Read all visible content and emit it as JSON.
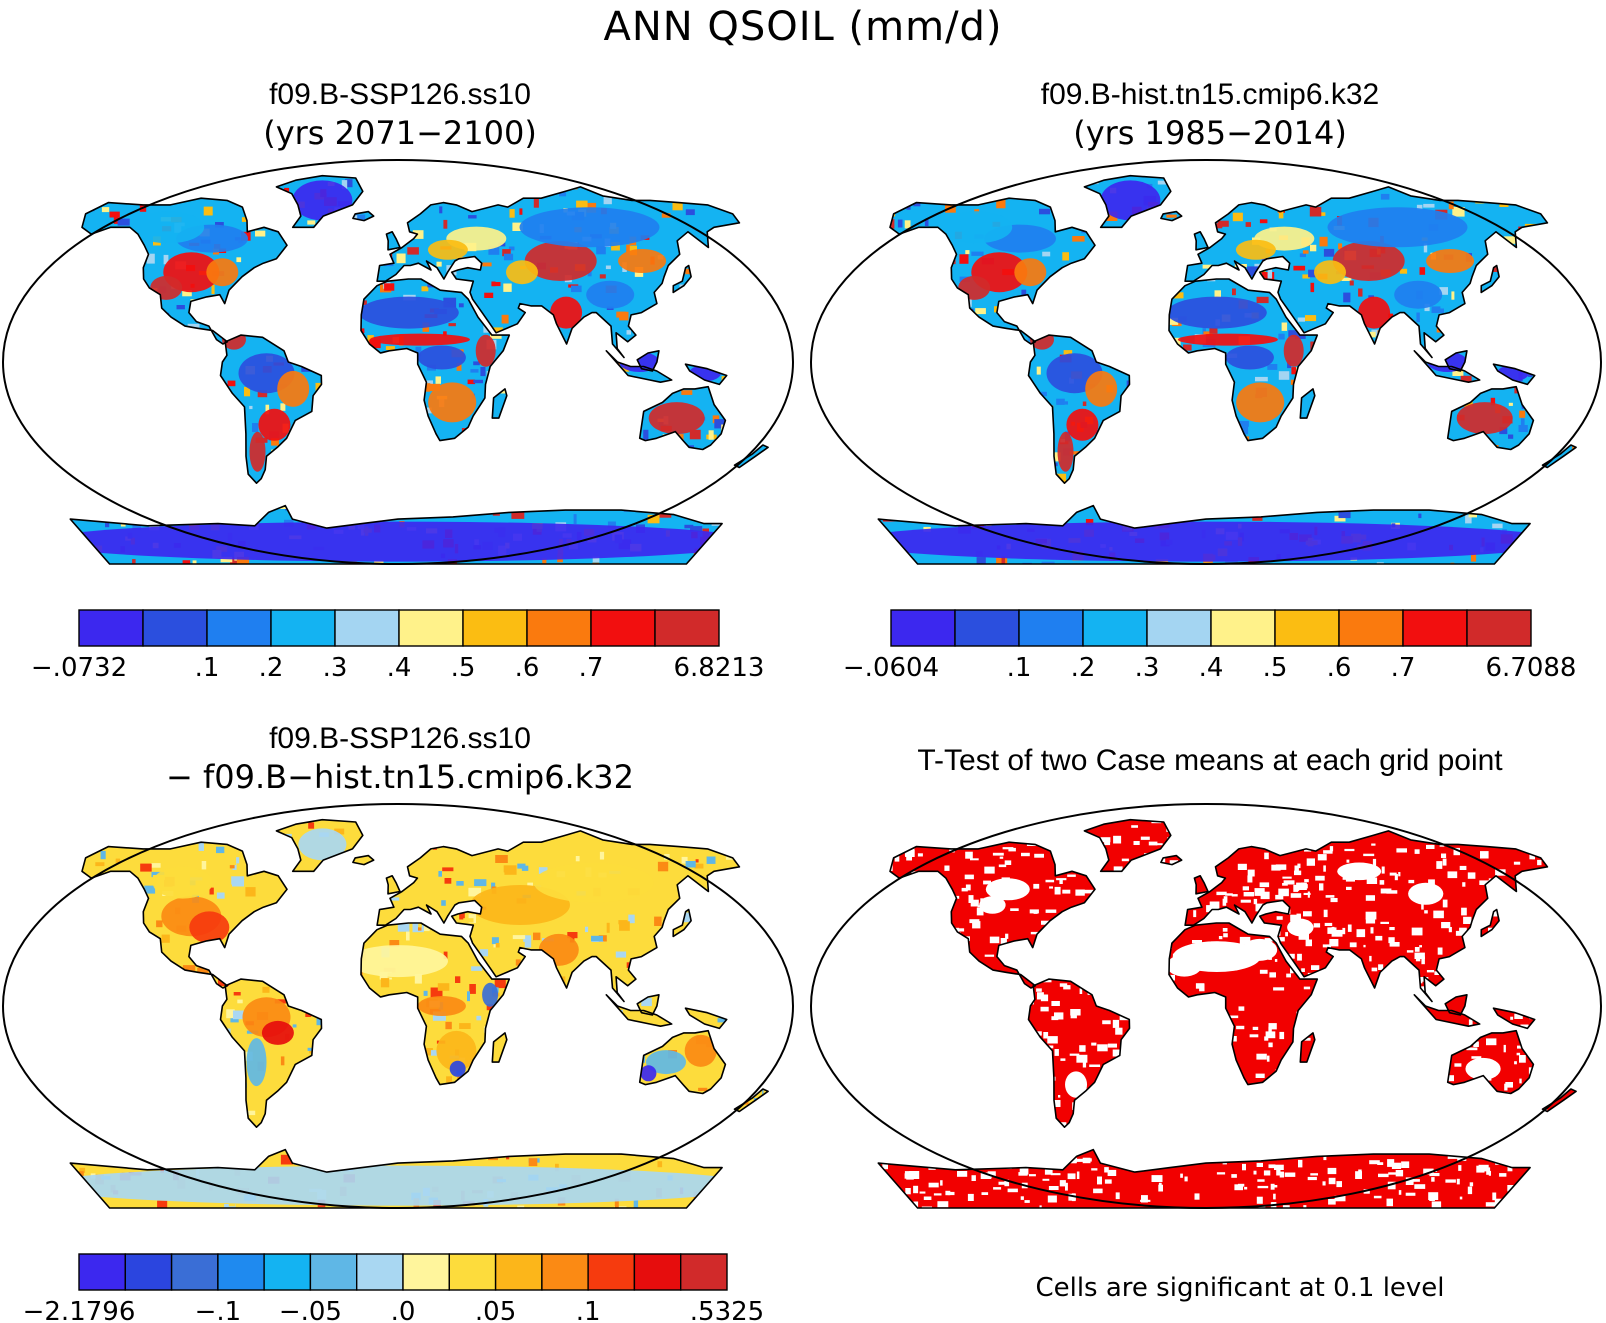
{
  "title": "ANN QSOIL (mm/d)",
  "panels": [
    {
      "id": "top-left",
      "case": "f09.B-SSP126.ss10",
      "subtitle": "(yrs 2071−2100)",
      "mode": "field",
      "land_palette": "historic",
      "colorbar": {
        "colors": [
          "#3c28ef",
          "#2b4fde",
          "#1f7ff0",
          "#14b3f2",
          "#a4d5f2",
          "#fff28a",
          "#fbbd12",
          "#fa7a0e",
          "#f20f0f",
          "#d12a2a"
        ],
        "labels": [
          "−.0732",
          ".1",
          ".2",
          ".3",
          ".4",
          ".5",
          ".6",
          ".7",
          "6.8213"
        ],
        "label_slots": [
          0,
          2,
          3,
          4,
          5,
          6,
          7,
          8,
          10
        ]
      }
    },
    {
      "id": "top-right",
      "case": "f09.B-hist.tn15.cmip6.k32",
      "subtitle": "(yrs 1985−2014)",
      "mode": "field",
      "land_palette": "historic",
      "colorbar": {
        "colors": [
          "#3c28ef",
          "#2b4fde",
          "#1f7ff0",
          "#14b3f2",
          "#a4d5f2",
          "#fff28a",
          "#fbbd12",
          "#fa7a0e",
          "#f20f0f",
          "#d12a2a"
        ],
        "labels": [
          "−.0604",
          ".1",
          ".2",
          ".3",
          ".4",
          ".5",
          ".6",
          ".7",
          "6.7088"
        ],
        "label_slots": [
          0,
          2,
          3,
          4,
          5,
          6,
          7,
          8,
          10
        ]
      }
    },
    {
      "id": "bottom-left",
      "case": "f09.B-SSP126.ss10",
      "subtitle": "− f09.B−hist.tn15.cmip6.k32",
      "mode": "difference",
      "colorbar": {
        "colors": [
          "#3c28ef",
          "#2b45df",
          "#3a6ed6",
          "#1f8aef",
          "#14b3f2",
          "#5fb7e6",
          "#a9d7f2",
          "#fff59c",
          "#fddc3c",
          "#fcb61a",
          "#fb8a14",
          "#f63b0e",
          "#e60d0d",
          "#d12a2a"
        ],
        "labels": [
          "−2.1796",
          "−.1",
          "−.05",
          ".0",
          ".05",
          ".1",
          ".5325"
        ],
        "label_slots": [
          0,
          3,
          5,
          7,
          9,
          11,
          14
        ]
      }
    },
    {
      "id": "bottom-right",
      "case": "T-Test of two Case means at each grid point",
      "subtitle": "",
      "mode": "significance",
      "note": "Cells are significant at 0.1 level"
    }
  ]
}
